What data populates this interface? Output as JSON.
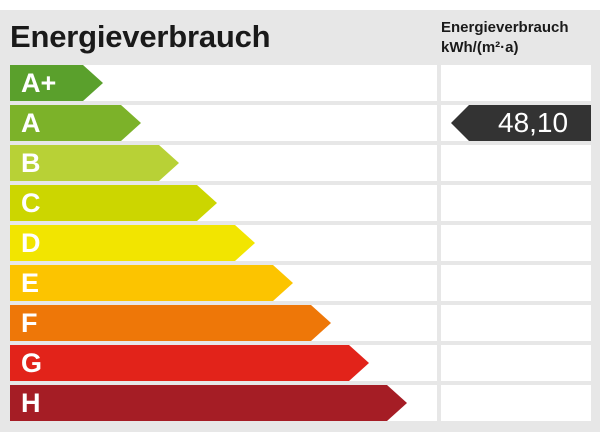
{
  "title": "Energieverbrauch",
  "unit_header": {
    "line1": "Energieverbrauch",
    "line2": "kWh/(m²·a)"
  },
  "classes": [
    {
      "label": "A+",
      "color": "#5aa02c"
    },
    {
      "label": "A",
      "color": "#7cb229"
    },
    {
      "label": "B",
      "color": "#b8d136"
    },
    {
      "label": "C",
      "color": "#ccd600"
    },
    {
      "label": "D",
      "color": "#f2e500"
    },
    {
      "label": "E",
      "color": "#fcc400"
    },
    {
      "label": "F",
      "color": "#ee7708"
    },
    {
      "label": "G",
      "color": "#e2231a"
    },
    {
      "label": "H",
      "color": "#a51d25"
    }
  ],
  "indicator": {
    "class_index": 1,
    "value": "48,10",
    "color": "#333333"
  }
}
